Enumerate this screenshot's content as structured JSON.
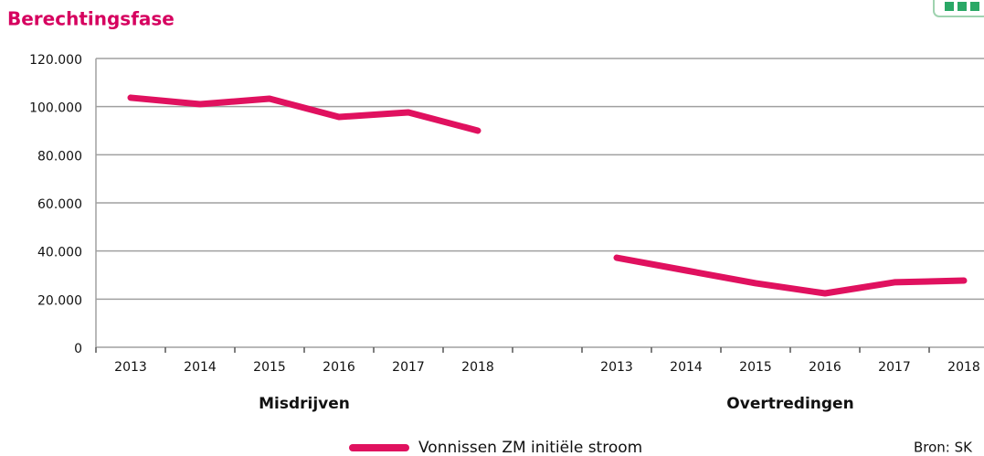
{
  "chart_data": {
    "type": "line",
    "title": "Berechtingsfase",
    "categories": [
      "2013",
      "2014",
      "2015",
      "2016",
      "2017",
      "2018",
      null,
      "2013",
      "2014",
      "2015",
      "2016",
      "2017",
      "2018"
    ],
    "group_labels": [
      "Misdrijven",
      "Overtredingen"
    ],
    "series": [
      {
        "name": "Vonnissen ZM initiële stroom",
        "color": "#e0115f",
        "values": [
          103700,
          101000,
          103300,
          95700,
          97600,
          90000,
          null,
          37200,
          31900,
          26600,
          22400,
          27000,
          27700
        ]
      }
    ],
    "ylim": [
      0,
      120000
    ],
    "yticks": [
      0,
      {
        "value": 20000,
        "label": "20.000"
      },
      {
        "value": 40000,
        "label": "40.000"
      },
      {
        "value": 60000,
        "label": "60.000"
      },
      {
        "value": 80000,
        "label": "80.000"
      },
      {
        "value": 100000,
        "label": "100.000"
      },
      {
        "value": 120000,
        "label": "120.000"
      }
    ],
    "grid": true,
    "source": "Bron: SK"
  }
}
